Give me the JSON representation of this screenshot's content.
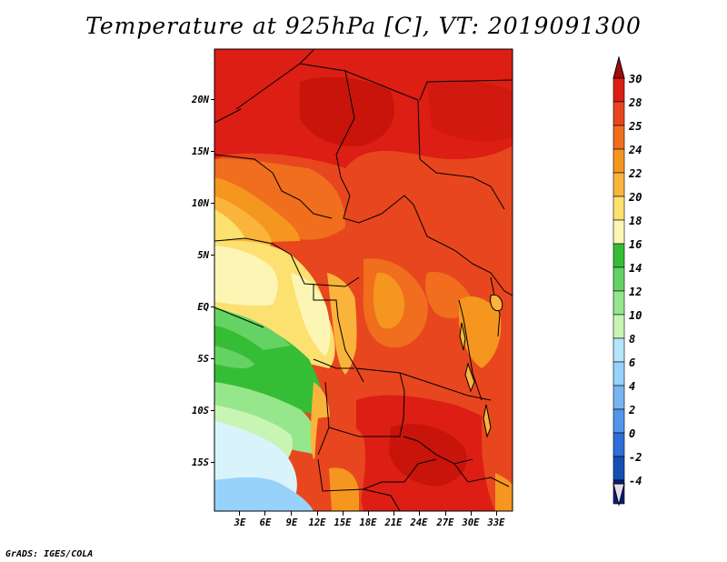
{
  "title": "Temperature at 925hPa [C], VT: 2019091300",
  "credit": "GrADS: IGES/COLA",
  "map": {
    "region": "Central and Southern Africa",
    "lat_labels": [
      "20N",
      "15N",
      "10N",
      "5N",
      "EQ",
      "5S",
      "10S",
      "15S"
    ],
    "lat_values": [
      20,
      15,
      10,
      5,
      0,
      -5,
      -10,
      -15
    ],
    "lon_labels": [
      "3E",
      "6E",
      "9E",
      "12E",
      "15E",
      "18E",
      "21E",
      "24E",
      "27E",
      "30E",
      "33E"
    ],
    "lon_values": [
      3,
      6,
      9,
      12,
      15,
      18,
      21,
      24,
      27,
      30,
      33
    ],
    "lat_range": [
      -19.5,
      24.5
    ],
    "lon_range": [
      0.5,
      35.0
    ]
  },
  "colorbar": {
    "levels": [
      "30",
      "28",
      "25",
      "24",
      "22",
      "20",
      "18",
      "16",
      "14",
      "12",
      "10",
      "8",
      "6",
      "4",
      "2",
      "0",
      "-2",
      "-4"
    ],
    "colors": [
      "#a50a0a",
      "#dc1e14",
      "#e8461e",
      "#f06e1e",
      "#f5961e",
      "#fab43c",
      "#fce070",
      "#fdf5b4",
      "#36bd36",
      "#64d364",
      "#96e68c",
      "#c8f5b4",
      "#b4e6fa",
      "#96d2fa",
      "#78b4f0",
      "#5096eb",
      "#2d6ed7",
      "#1450b4",
      "#0a1e78"
    ],
    "under_color": "#e6dcf0"
  },
  "colors": {
    "accent_hot": "#dc1e14",
    "accent_cool": "#96d2fa"
  }
}
